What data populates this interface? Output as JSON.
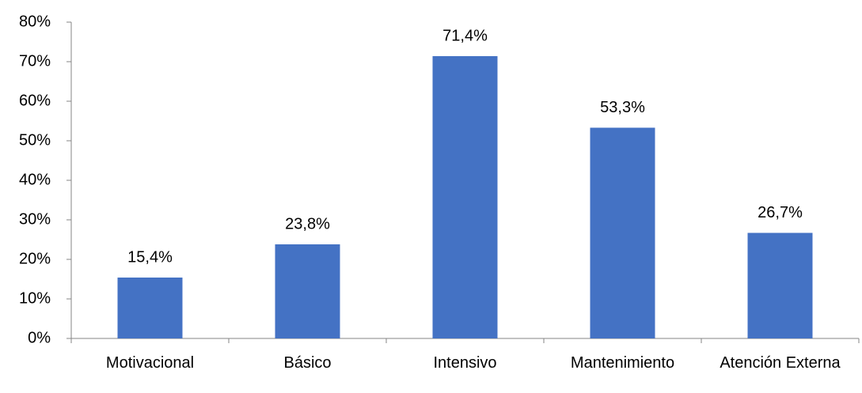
{
  "chart_data": {
    "type": "bar",
    "categories": [
      "Motivacional",
      "Básico",
      "Intensivo",
      "Mantenimiento",
      "Atención Externa"
    ],
    "values": [
      15.4,
      23.8,
      71.4,
      53.3,
      26.7
    ],
    "value_labels": [
      "15,4%",
      "23,8%",
      "71,4%",
      "53,3%",
      "26,7%"
    ],
    "color": "#4472c4",
    "ylim": [
      0,
      80
    ],
    "yticks": [
      {
        "value": 0,
        "label": "0%"
      },
      {
        "value": 10,
        "label": "10%"
      },
      {
        "value": 20,
        "label": "20%"
      },
      {
        "value": 30,
        "label": "30%"
      },
      {
        "value": 40,
        "label": "40%"
      },
      {
        "value": 50,
        "label": "50%"
      },
      {
        "value": 60,
        "label": "60%"
      },
      {
        "value": 70,
        "label": "70%"
      },
      {
        "value": 80,
        "label": "80%"
      }
    ],
    "grid": false
  }
}
